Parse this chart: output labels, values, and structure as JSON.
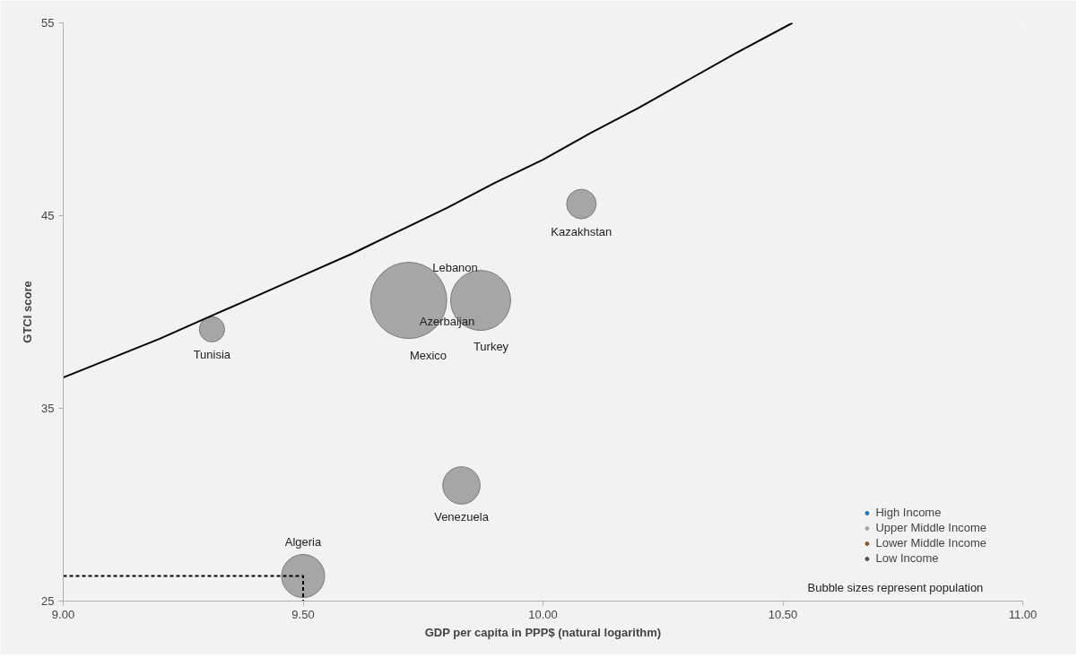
{
  "chart_data": {
    "type": "bubble",
    "xlabel": "GDP per capita in PPP$ (natural logarithm)",
    "ylabel": "GTCI score",
    "xlim": [
      9.0,
      11.0
    ],
    "xticks": [
      {
        "value": 9.0,
        "label": "9.00"
      },
      {
        "value": 9.5,
        "label": "9.50"
      },
      {
        "value": 10.0,
        "label": "10.00"
      },
      {
        "value": 10.5,
        "label": "10.50"
      },
      {
        "value": 11.0,
        "label": "11.00"
      }
    ],
    "ylim": [
      25,
      55
    ],
    "yticks": [
      25,
      35,
      45,
      55
    ],
    "grid": false,
    "legend": "bottom right",
    "series": [
      {
        "name": "High Income",
        "color": "#1f77c0"
      },
      {
        "name": "Upper Middle Income",
        "color": "#a6a6a6",
        "x": [
          9.31,
          9.72,
          9.87,
          10.08,
          9.83,
          9.5
        ],
        "values": [
          39.1,
          40.6,
          40.6,
          45.6,
          31.0,
          26.3
        ],
        "sizes": [
          0.11,
          1,
          0.62,
          0.15,
          0.24,
          0.32
        ]
      },
      {
        "name": "Lower Middle Income",
        "color": "#8b5a2b"
      },
      {
        "name": "Low Income",
        "color": "#505050"
      },
      {
        "type": "line",
        "color": "#000000",
        "line_style": "solid",
        "x": [
          9.0,
          9.1,
          9.2,
          9.3,
          9.4,
          9.5,
          9.6,
          9.7,
          9.8,
          9.9,
          10.0,
          10.1,
          10.2,
          10.3,
          10.4,
          10.52
        ],
        "values": [
          36.6,
          37.6,
          38.6,
          39.7,
          40.8,
          41.9,
          43.0,
          44.2,
          45.4,
          46.7,
          47.9,
          49.3,
          50.6,
          52.0,
          53.4,
          55.0
        ]
      },
      {
        "type": "line",
        "color": "#000000",
        "line_style": "dashed",
        "x": [
          9.0,
          9.5,
          9.5
        ],
        "values": [
          26.3,
          26.3,
          25
        ]
      }
    ],
    "annotations": [
      {
        "text": "Tunisia",
        "x": 9.31,
        "y": 39.1
      },
      {
        "text": "Kazakhstan",
        "x": 10.08,
        "y": 45.6
      },
      {
        "text": "Venezuela",
        "x": 9.83,
        "y": 31.0
      },
      {
        "text": "Algeria",
        "x": 9.5,
        "y": 26.3
      },
      "Mexico",
      "Turkey",
      "Lebanon",
      "Azerbaijan",
      "Bubble sizes represent population"
    ]
  }
}
